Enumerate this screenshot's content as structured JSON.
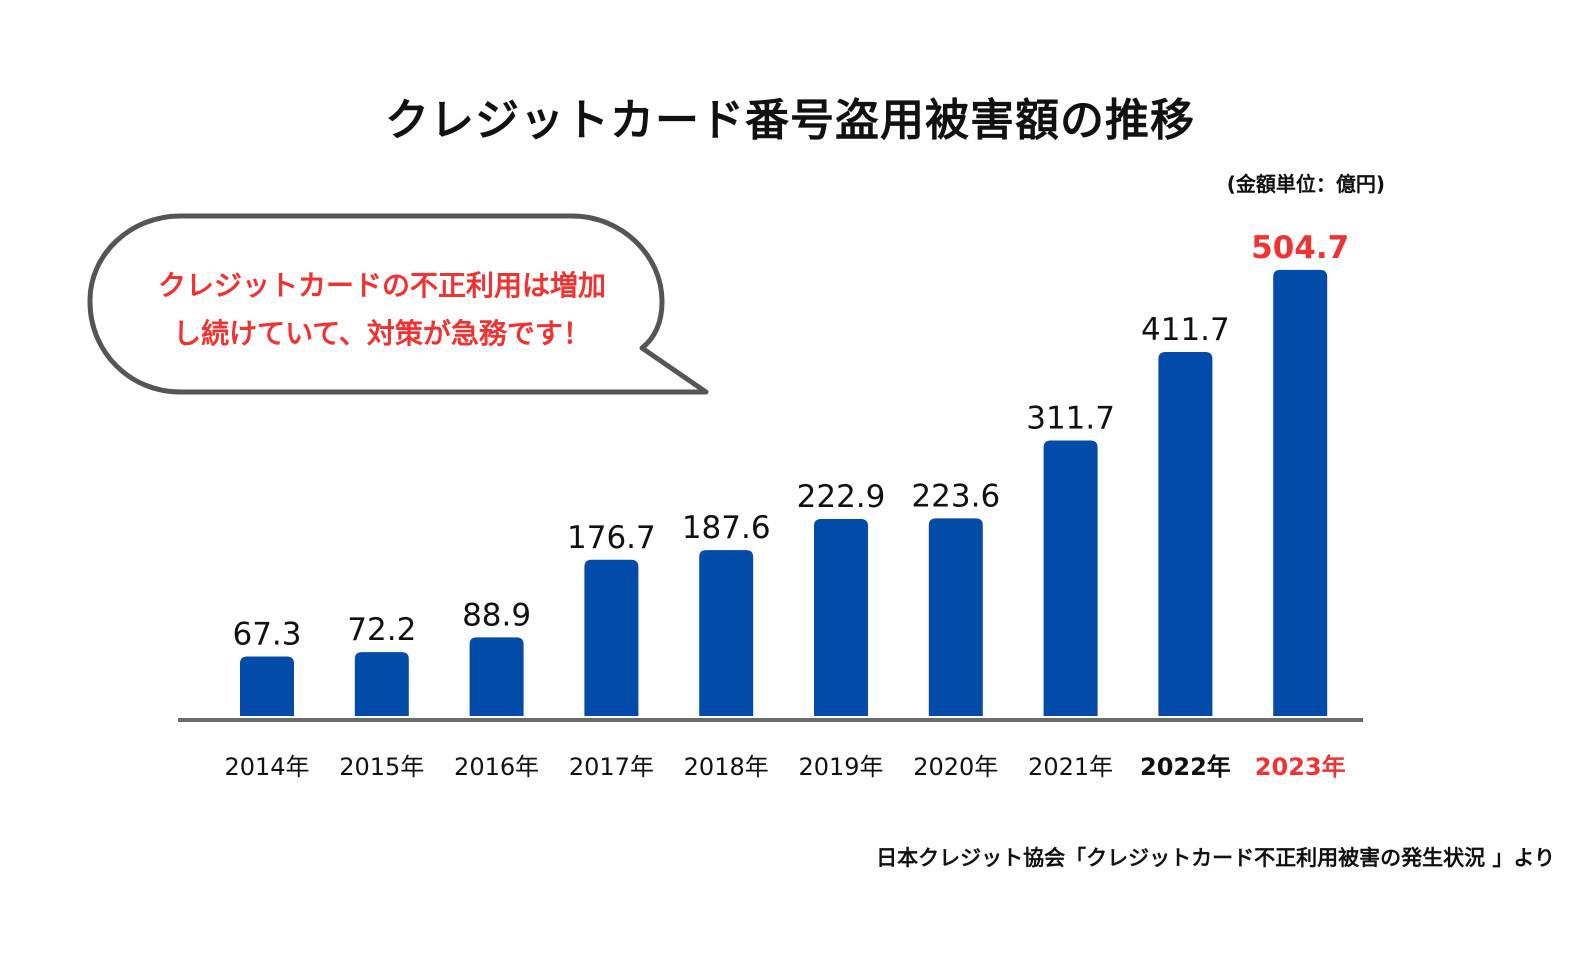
{
  "chart_data": {
    "type": "bar",
    "title": "クレジットカード番号盗用被害額の推移",
    "unit_label": "(金額単位：億円)",
    "categories": [
      "2014年",
      "2015年",
      "2016年",
      "2017年",
      "2018年",
      "2019年",
      "2020年",
      "2021年",
      "2022年",
      "2023年"
    ],
    "values": [
      67.3,
      72.2,
      88.9,
      176.7,
      187.6,
      222.9,
      223.6,
      311.7,
      411.7,
      504.7
    ],
    "value_labels": [
      "67.3",
      "72.2",
      "88.9",
      "176.7",
      "187.6",
      "222.9",
      "223.6",
      "311.7",
      "411.7",
      "504.7"
    ],
    "highlight": {
      "bold_category_index": 8,
      "red_category_index": 9,
      "red_value_index": 9
    },
    "colors": {
      "bar": "#024ba9",
      "highlight_text": "#ee3334",
      "axis": "#6b6b6b",
      "callout_border": "#555555"
    },
    "callout": {
      "lines": [
        "クレジットカードの不正利用は増加",
        "し続けていて、対策が急務です！"
      ]
    },
    "source": "日本クレジット協会「クレジットカード不正利用被害の発生状況 」より",
    "xlabel": "",
    "ylabel": "",
    "grid": false,
    "legend": "none"
  }
}
